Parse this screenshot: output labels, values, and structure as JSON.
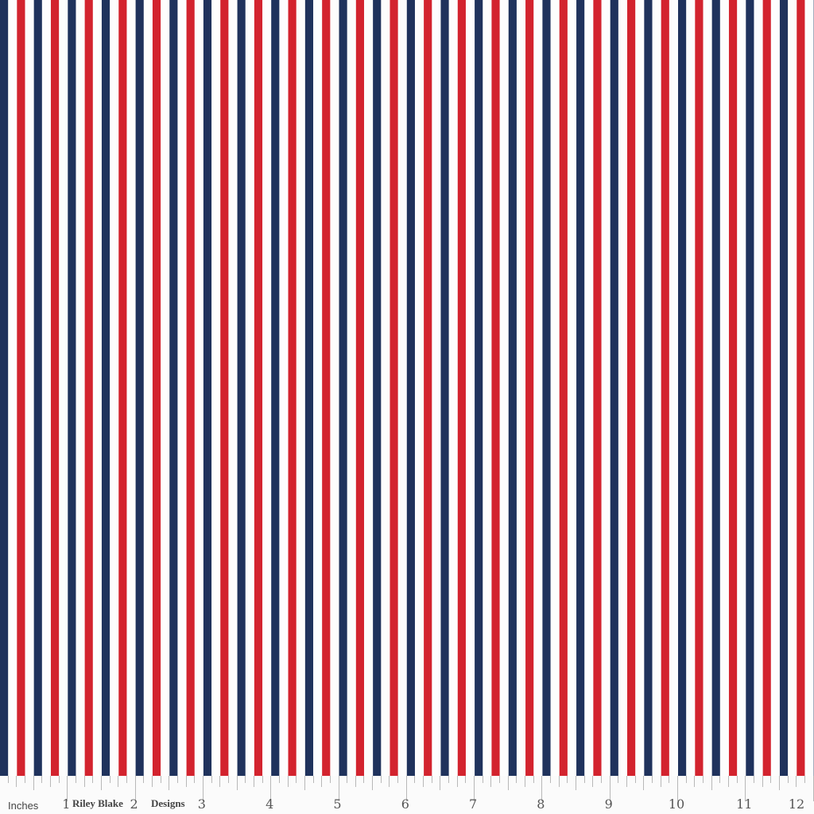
{
  "fabric": {
    "pattern": "vertical stripes",
    "stripe_sequence": [
      "navy",
      "white",
      "red",
      "white"
    ],
    "colors": {
      "navy": "#1f325c",
      "red": "#d3232e",
      "white": "#fdfdfd"
    },
    "repeat_inches": 0.5
  },
  "ruler": {
    "units_label": "Inches",
    "brand_words": [
      "Riley Blake",
      "Designs"
    ],
    "numbers": [
      "1",
      "2",
      "3",
      "4",
      "5",
      "6",
      "7",
      "8",
      "9",
      "10",
      "11",
      "12"
    ]
  }
}
